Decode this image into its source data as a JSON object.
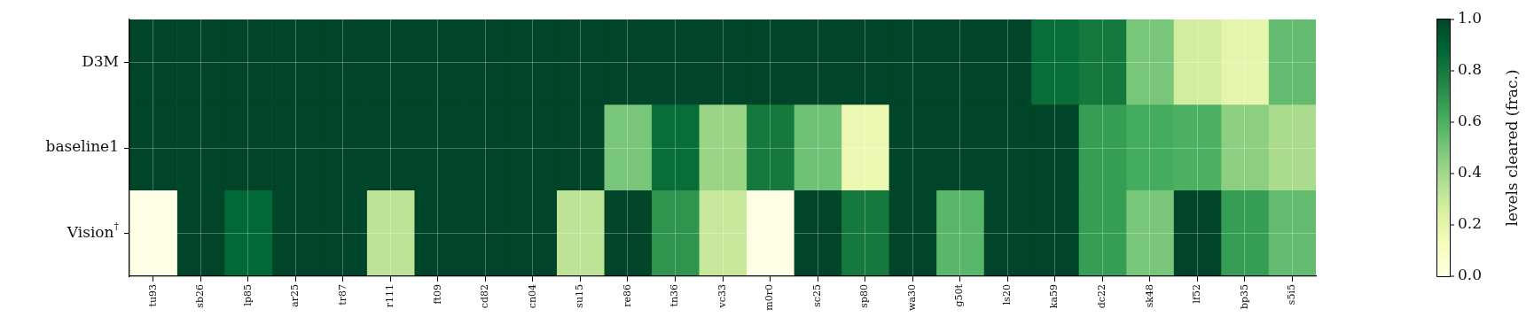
{
  "chart_data": {
    "type": "heatmap",
    "categories": [
      "tu93",
      "sb26",
      "lp85",
      "ar25",
      "tr87",
      "r111",
      "ft09",
      "cd82",
      "cn04",
      "su15",
      "re86",
      "tn36",
      "vc33",
      "m0r0",
      "sc25",
      "sp80",
      "wa30",
      "g50t",
      "ls20",
      "ka59",
      "dc22",
      "sk48",
      "lf52",
      "bp35",
      "s5i5"
    ],
    "y_categories": [
      "D3M",
      "baseline1",
      "Vision$^{†}$"
    ],
    "cells": [
      [
        1,
        1,
        1,
        1,
        1,
        1,
        1,
        1,
        1,
        1,
        1,
        1,
        1,
        1,
        1,
        1,
        1,
        1,
        1,
        0.85,
        0.8,
        0.5,
        0.27,
        0.2,
        0.55
      ],
      [
        1,
        1,
        1,
        1,
        1,
        1,
        1,
        1,
        1,
        1,
        0.5,
        0.85,
        0.42,
        0.8,
        0.52,
        0.17,
        1,
        1,
        1,
        1,
        0.67,
        0.62,
        0.6,
        0.45,
        0.38
      ],
      [
        0,
        1,
        0.87,
        1,
        1,
        0.33,
        1,
        1,
        1,
        0.33,
        1,
        0.7,
        0.3,
        0,
        1,
        0.8,
        1,
        0.57,
        1,
        1,
        0.67,
        0.5,
        1,
        0.67,
        0.55
      ]
    ],
    "clim": [
      0,
      1
    ],
    "cticks": [
      {
        "value": 0,
        "label": "0.0"
      },
      0.2,
      0.4,
      0.6,
      0.8,
      {
        "value": 1,
        "label": "1.0"
      }
    ],
    "clabel": "levels cleared (frac.)",
    "grid": true
  }
}
